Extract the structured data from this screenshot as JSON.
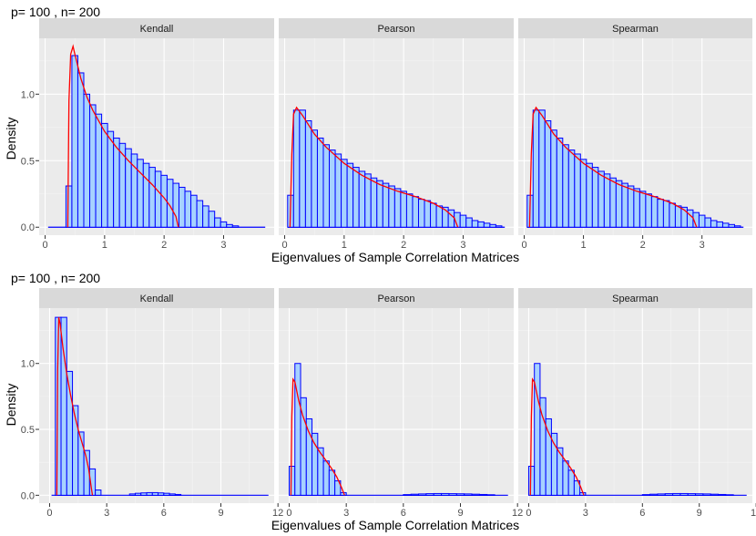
{
  "chart_data": [
    {
      "type": "histogram-facet",
      "title": "p= 100 , n= 200",
      "xlabel": "Eigenvalues of Sample Correlation Matrices",
      "ylabel": "Density",
      "xlim": [
        -0.1,
        3.85
      ],
      "ylim": [
        -0.06,
        1.42
      ],
      "xticks": [
        0,
        1,
        2,
        3
      ],
      "xtick_labels": [
        "0",
        "1",
        "2",
        "3"
      ],
      "yticks": [
        0.0,
        0.5,
        1.0
      ],
      "ytick_labels": [
        "0.0",
        "0.5",
        "1.0"
      ],
      "baseline_range": [
        0.05,
        3.7
      ],
      "panels": [
        {
          "strip": "Kendall",
          "bin_start": 0.35,
          "bin_width": 0.1,
          "density": [
            0.31,
            1.29,
            1.16,
            1.0,
            0.92,
            0.85,
            0.78,
            0.72,
            0.67,
            0.63,
            0.59,
            0.55,
            0.51,
            0.48,
            0.45,
            0.42,
            0.39,
            0.36,
            0.33,
            0.3,
            0.27,
            0.24,
            0.2,
            0.16,
            0.12,
            0.07,
            0.04,
            0.02,
            0.01
          ],
          "curve_x": [
            0.38,
            0.4,
            0.43,
            0.47,
            0.5,
            0.6,
            0.7,
            0.8,
            1.0,
            1.2,
            1.4,
            1.6,
            1.8,
            2.0,
            2.1,
            2.2,
            2.24
          ],
          "curve_y": [
            0.0,
            0.95,
            1.3,
            1.36,
            1.3,
            1.12,
            0.98,
            0.88,
            0.72,
            0.6,
            0.5,
            0.41,
            0.32,
            0.22,
            0.16,
            0.08,
            0.0
          ]
        },
        {
          "strip": "Pearson",
          "bin_start": 0.05,
          "bin_width": 0.1,
          "density": [
            0.24,
            0.88,
            0.88,
            0.8,
            0.73,
            0.67,
            0.62,
            0.58,
            0.55,
            0.51,
            0.48,
            0.45,
            0.42,
            0.4,
            0.37,
            0.35,
            0.33,
            0.31,
            0.29,
            0.27,
            0.25,
            0.23,
            0.21,
            0.2,
            0.18,
            0.16,
            0.15,
            0.13,
            0.11,
            0.09,
            0.07,
            0.05,
            0.04,
            0.03,
            0.02,
            0.01
          ],
          "curve_x": [
            0.09,
            0.12,
            0.15,
            0.2,
            0.3,
            0.5,
            0.7,
            1.0,
            1.3,
            1.6,
            1.9,
            2.2,
            2.5,
            2.7,
            2.85,
            2.91
          ],
          "curve_y": [
            0.0,
            0.55,
            0.85,
            0.9,
            0.84,
            0.7,
            0.6,
            0.48,
            0.39,
            0.32,
            0.27,
            0.23,
            0.18,
            0.13,
            0.07,
            0.0
          ]
        },
        {
          "strip": "Spearman",
          "bin_start": 0.05,
          "bin_width": 0.1,
          "density": [
            0.24,
            0.88,
            0.88,
            0.8,
            0.73,
            0.67,
            0.62,
            0.58,
            0.55,
            0.51,
            0.48,
            0.45,
            0.42,
            0.4,
            0.37,
            0.35,
            0.33,
            0.31,
            0.29,
            0.27,
            0.25,
            0.23,
            0.21,
            0.2,
            0.18,
            0.16,
            0.15,
            0.13,
            0.11,
            0.09,
            0.07,
            0.05,
            0.04,
            0.03,
            0.02,
            0.01
          ],
          "curve_x": [
            0.09,
            0.12,
            0.15,
            0.2,
            0.3,
            0.5,
            0.7,
            1.0,
            1.3,
            1.6,
            1.9,
            2.2,
            2.5,
            2.7,
            2.85,
            2.91
          ],
          "curve_y": [
            0.0,
            0.55,
            0.85,
            0.9,
            0.84,
            0.7,
            0.6,
            0.48,
            0.39,
            0.32,
            0.27,
            0.23,
            0.18,
            0.13,
            0.07,
            0.0
          ]
        }
      ]
    },
    {
      "type": "histogram-facet",
      "title": "p= 100 , n= 200",
      "xlabel": "Eigenvalues of Sample Correlation Matrices",
      "ylabel": "Density",
      "xlim": [
        -0.55,
        11.8
      ],
      "ylim": [
        -0.06,
        1.42
      ],
      "xticks": [
        0,
        3,
        6,
        9,
        12
      ],
      "xtick_labels": [
        "0",
        "3",
        "6",
        "9",
        "12"
      ],
      "yticks": [
        0.0,
        0.5,
        1.0
      ],
      "ytick_labels": [
        "0.0",
        "0.5",
        "1.0"
      ],
      "baseline_range": [
        0.1,
        11.5
      ],
      "panels": [
        {
          "strip": "Kendall",
          "bin_start": 0.3,
          "bin_width": 0.3,
          "density": [
            1.35,
            1.35,
            0.94,
            0.68,
            0.48,
            0.34,
            0.2,
            0.04
          ],
          "tail_start": 4.2,
          "tail_width": 0.3,
          "tail_density": [
            0.01,
            0.015,
            0.018,
            0.02,
            0.02,
            0.018,
            0.015,
            0.01,
            0.006
          ],
          "curve_x": [
            0.38,
            0.42,
            0.48,
            0.55,
            0.7,
            0.9,
            1.1,
            1.3,
            1.5,
            1.7,
            1.9,
            2.05,
            2.2,
            2.25
          ],
          "curve_y": [
            0.0,
            0.95,
            1.35,
            1.3,
            1.12,
            0.92,
            0.76,
            0.62,
            0.5,
            0.4,
            0.3,
            0.2,
            0.05,
            0.0
          ]
        },
        {
          "strip": "Pearson",
          "bin_start": 0.0,
          "bin_width": 0.3,
          "density": [
            0.22,
            1.0,
            0.74,
            0.58,
            0.47,
            0.36,
            0.26,
            0.19,
            0.11,
            0.02
          ],
          "tail_start": 6.0,
          "tail_width": 0.4,
          "tail_density": [
            0.005,
            0.008,
            0.01,
            0.012,
            0.013,
            0.013,
            0.012,
            0.011,
            0.01,
            0.008,
            0.006,
            0.004
          ],
          "curve_x": [
            0.09,
            0.14,
            0.2,
            0.3,
            0.5,
            0.7,
            1.0,
            1.3,
            1.6,
            1.9,
            2.2,
            2.5,
            2.75,
            2.91
          ],
          "curve_y": [
            0.0,
            0.6,
            0.88,
            0.86,
            0.72,
            0.61,
            0.49,
            0.4,
            0.33,
            0.27,
            0.21,
            0.14,
            0.06,
            0.0
          ]
        },
        {
          "strip": "Spearman",
          "bin_start": 0.0,
          "bin_width": 0.3,
          "density": [
            0.22,
            1.0,
            0.74,
            0.58,
            0.47,
            0.36,
            0.26,
            0.19,
            0.11,
            0.02
          ],
          "tail_start": 6.0,
          "tail_width": 0.4,
          "tail_density": [
            0.005,
            0.008,
            0.01,
            0.012,
            0.013,
            0.013,
            0.012,
            0.011,
            0.01,
            0.008,
            0.006,
            0.004
          ],
          "curve_x": [
            0.09,
            0.14,
            0.2,
            0.3,
            0.5,
            0.7,
            1.0,
            1.3,
            1.6,
            1.9,
            2.2,
            2.5,
            2.75,
            2.91
          ],
          "curve_y": [
            0.0,
            0.6,
            0.88,
            0.86,
            0.72,
            0.61,
            0.49,
            0.4,
            0.33,
            0.27,
            0.21,
            0.14,
            0.06,
            0.0
          ]
        }
      ]
    }
  ],
  "colors": {
    "panel_bg": "#ebebeb",
    "strip_bg": "#d9d9d9",
    "grid_major": "#ffffff",
    "bar_fill": "#a6d2ff",
    "bar_edge": "#0000ff",
    "curve": "#ff0000"
  }
}
